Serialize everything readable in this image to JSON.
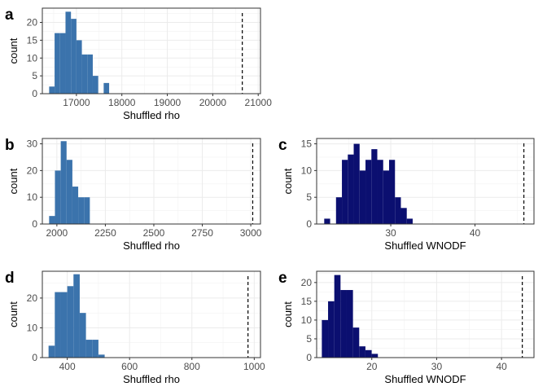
{
  "chart_data": [
    {
      "panel_label": "a",
      "type": "bar",
      "subtype": "histogram",
      "xlabel": "Shuffled rho",
      "ylabel": "count",
      "xlim": [
        16250,
        21050
      ],
      "ylim": [
        0,
        24
      ],
      "xticks": [
        17000,
        18000,
        19000,
        20000,
        21000
      ],
      "yticks": [
        0,
        5,
        10,
        15,
        20
      ],
      "bin_width": 120,
      "bins": [
        {
          "x0": 16400,
          "x1": 16520,
          "count": 2
        },
        {
          "x0": 16520,
          "x1": 16640,
          "count": 17
        },
        {
          "x0": 16640,
          "x1": 16760,
          "count": 17
        },
        {
          "x0": 16760,
          "x1": 16880,
          "count": 23
        },
        {
          "x0": 16880,
          "x1": 17000,
          "count": 21
        },
        {
          "x0": 17000,
          "x1": 17120,
          "count": 15
        },
        {
          "x0": 17120,
          "x1": 17240,
          "count": 11
        },
        {
          "x0": 17240,
          "x1": 17360,
          "count": 11
        },
        {
          "x0": 17360,
          "x1": 17480,
          "count": 5
        },
        {
          "x0": 17600,
          "x1": 17720,
          "count": 3
        }
      ],
      "observed_value": 20650,
      "bar_color": "#3B73AC",
      "grid": true
    },
    {
      "panel_label": "b",
      "type": "bar",
      "subtype": "histogram",
      "xlabel": "Shuffled rho",
      "ylabel": "count",
      "xlim": [
        1925,
        3050
      ],
      "ylim": [
        0,
        32
      ],
      "xticks": [
        2000,
        2250,
        2500,
        2750,
        3000
      ],
      "yticks": [
        0,
        10,
        20,
        30
      ],
      "bin_width": 30,
      "bins": [
        {
          "x0": 1960,
          "x1": 1990,
          "count": 3
        },
        {
          "x0": 1990,
          "x1": 2020,
          "count": 20
        },
        {
          "x0": 2020,
          "x1": 2050,
          "count": 31
        },
        {
          "x0": 2050,
          "x1": 2080,
          "count": 24
        },
        {
          "x0": 2080,
          "x1": 2110,
          "count": 14
        },
        {
          "x0": 2110,
          "x1": 2140,
          "count": 10
        },
        {
          "x0": 2140,
          "x1": 2170,
          "count": 10
        }
      ],
      "observed_value": 3010,
      "bar_color": "#3B73AC",
      "grid": true
    },
    {
      "panel_label": "c",
      "type": "bar",
      "subtype": "histogram",
      "xlabel": "Shuffled WNODF",
      "ylabel": "count",
      "xlim": [
        21.2,
        47
      ],
      "ylim": [
        0,
        16
      ],
      "xticks": [
        30,
        40
      ],
      "yticks": [
        0,
        5,
        10,
        15
      ],
      "bin_width": 0.7,
      "bins": [
        {
          "x0": 22.1,
          "x1": 22.8,
          "count": 1
        },
        {
          "x0": 23.5,
          "x1": 24.2,
          "count": 5
        },
        {
          "x0": 24.2,
          "x1": 24.9,
          "count": 12
        },
        {
          "x0": 24.9,
          "x1": 25.6,
          "count": 13
        },
        {
          "x0": 25.6,
          "x1": 26.3,
          "count": 15
        },
        {
          "x0": 26.3,
          "x1": 27.0,
          "count": 10
        },
        {
          "x0": 27.0,
          "x1": 27.7,
          "count": 12
        },
        {
          "x0": 27.7,
          "x1": 28.4,
          "count": 14
        },
        {
          "x0": 28.4,
          "x1": 29.1,
          "count": 12
        },
        {
          "x0": 29.1,
          "x1": 29.8,
          "count": 10
        },
        {
          "x0": 29.8,
          "x1": 30.5,
          "count": 12
        },
        {
          "x0": 30.5,
          "x1": 31.2,
          "count": 5
        },
        {
          "x0": 31.2,
          "x1": 31.9,
          "count": 3
        },
        {
          "x0": 31.9,
          "x1": 32.6,
          "count": 1
        }
      ],
      "observed_value": 45.8,
      "bar_color": "#0B0F70",
      "grid": true
    },
    {
      "panel_label": "d",
      "type": "bar",
      "subtype": "histogram",
      "xlabel": "Shuffled rho",
      "ylabel": "count",
      "xlim": [
        320,
        1020
      ],
      "ylim": [
        0,
        29
      ],
      "xticks": [
        400,
        600,
        800,
        1000
      ],
      "yticks": [
        0,
        10,
        20
      ],
      "bin_width": 20,
      "bins": [
        {
          "x0": 340,
          "x1": 360,
          "count": 4
        },
        {
          "x0": 360,
          "x1": 380,
          "count": 22
        },
        {
          "x0": 380,
          "x1": 400,
          "count": 22
        },
        {
          "x0": 400,
          "x1": 420,
          "count": 24
        },
        {
          "x0": 420,
          "x1": 440,
          "count": 28
        },
        {
          "x0": 440,
          "x1": 460,
          "count": 15
        },
        {
          "x0": 460,
          "x1": 480,
          "count": 6
        },
        {
          "x0": 480,
          "x1": 500,
          "count": 6
        },
        {
          "x0": 500,
          "x1": 520,
          "count": 1
        }
      ],
      "observed_value": 980,
      "bar_color": "#3B73AC",
      "grid": true
    },
    {
      "panel_label": "e",
      "type": "bar",
      "subtype": "histogram",
      "xlabel": "Shuffled WNODF",
      "ylabel": "count",
      "xlim": [
        11.5,
        45
      ],
      "ylim": [
        0,
        23
      ],
      "xticks": [
        20,
        30,
        40
      ],
      "yticks": [
        0,
        5,
        10,
        15,
        20
      ],
      "bin_width": 0.96,
      "bins": [
        {
          "x0": 12.3,
          "x1": 13.26,
          "count": 10
        },
        {
          "x0": 13.26,
          "x1": 14.22,
          "count": 15
        },
        {
          "x0": 14.22,
          "x1": 15.18,
          "count": 22
        },
        {
          "x0": 15.18,
          "x1": 16.14,
          "count": 18
        },
        {
          "x0": 16.14,
          "x1": 17.1,
          "count": 18
        },
        {
          "x0": 17.1,
          "x1": 18.06,
          "count": 8
        },
        {
          "x0": 18.06,
          "x1": 19.02,
          "count": 3
        },
        {
          "x0": 19.02,
          "x1": 19.98,
          "count": 2
        },
        {
          "x0": 19.98,
          "x1": 20.94,
          "count": 1
        }
      ],
      "observed_value": 43.2,
      "bar_color": "#0B0F70",
      "grid": true
    }
  ]
}
